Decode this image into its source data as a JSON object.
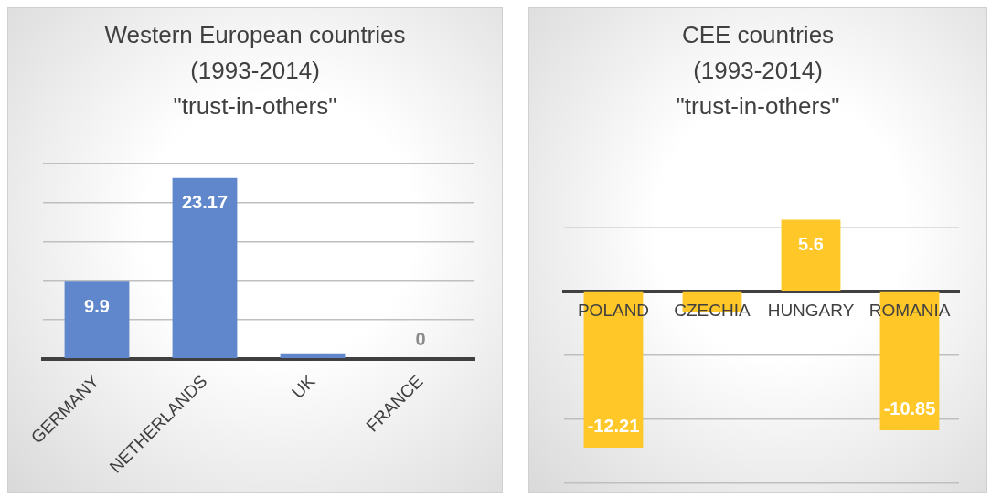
{
  "chart_data": [
    {
      "type": "bar",
      "title": "Western European countries\n(1993-2014)\n\"trust-in-others\"",
      "categories": [
        "GERMANY",
        "NETHERLANDS",
        "UK",
        "FRANCE"
      ],
      "values": [
        9.9,
        23.17,
        0.7,
        0
      ],
      "value_labels": [
        "9.9",
        "23.17",
        null,
        "0"
      ],
      "color": "#6087cb",
      "ylim": [
        0,
        25
      ],
      "yticks": [
        {
          "value": 0,
          "label": null
        },
        {
          "value": 5,
          "label": null
        },
        {
          "value": 10,
          "label": null
        },
        {
          "value": 15,
          "label": null
        },
        {
          "value": 20,
          "label": null
        },
        {
          "value": 25,
          "label": null
        }
      ],
      "grid": "y",
      "tick_labels": "x"
    },
    {
      "type": "bar",
      "title": "CEE countries\n(1993-2014)\n\"trust-in-others\"",
      "categories": [
        "POLAND",
        "CZECHIA",
        "HUNGARY",
        "ROMANIA"
      ],
      "values": [
        -12.21,
        -1.6,
        5.6,
        -10.85
      ],
      "value_labels": [
        "-12.21",
        null,
        "5.6",
        "-10.85"
      ],
      "color": "#ffc727",
      "yticks": [
        {
          "value": -15,
          "label": null
        },
        {
          "value": -10,
          "label": null
        },
        {
          "value": -5,
          "label": null
        },
        {
          "value": 0,
          "label": null
        },
        {
          "value": 5,
          "label": null
        }
      ],
      "grid": "y",
      "tick_labels": "x"
    }
  ]
}
